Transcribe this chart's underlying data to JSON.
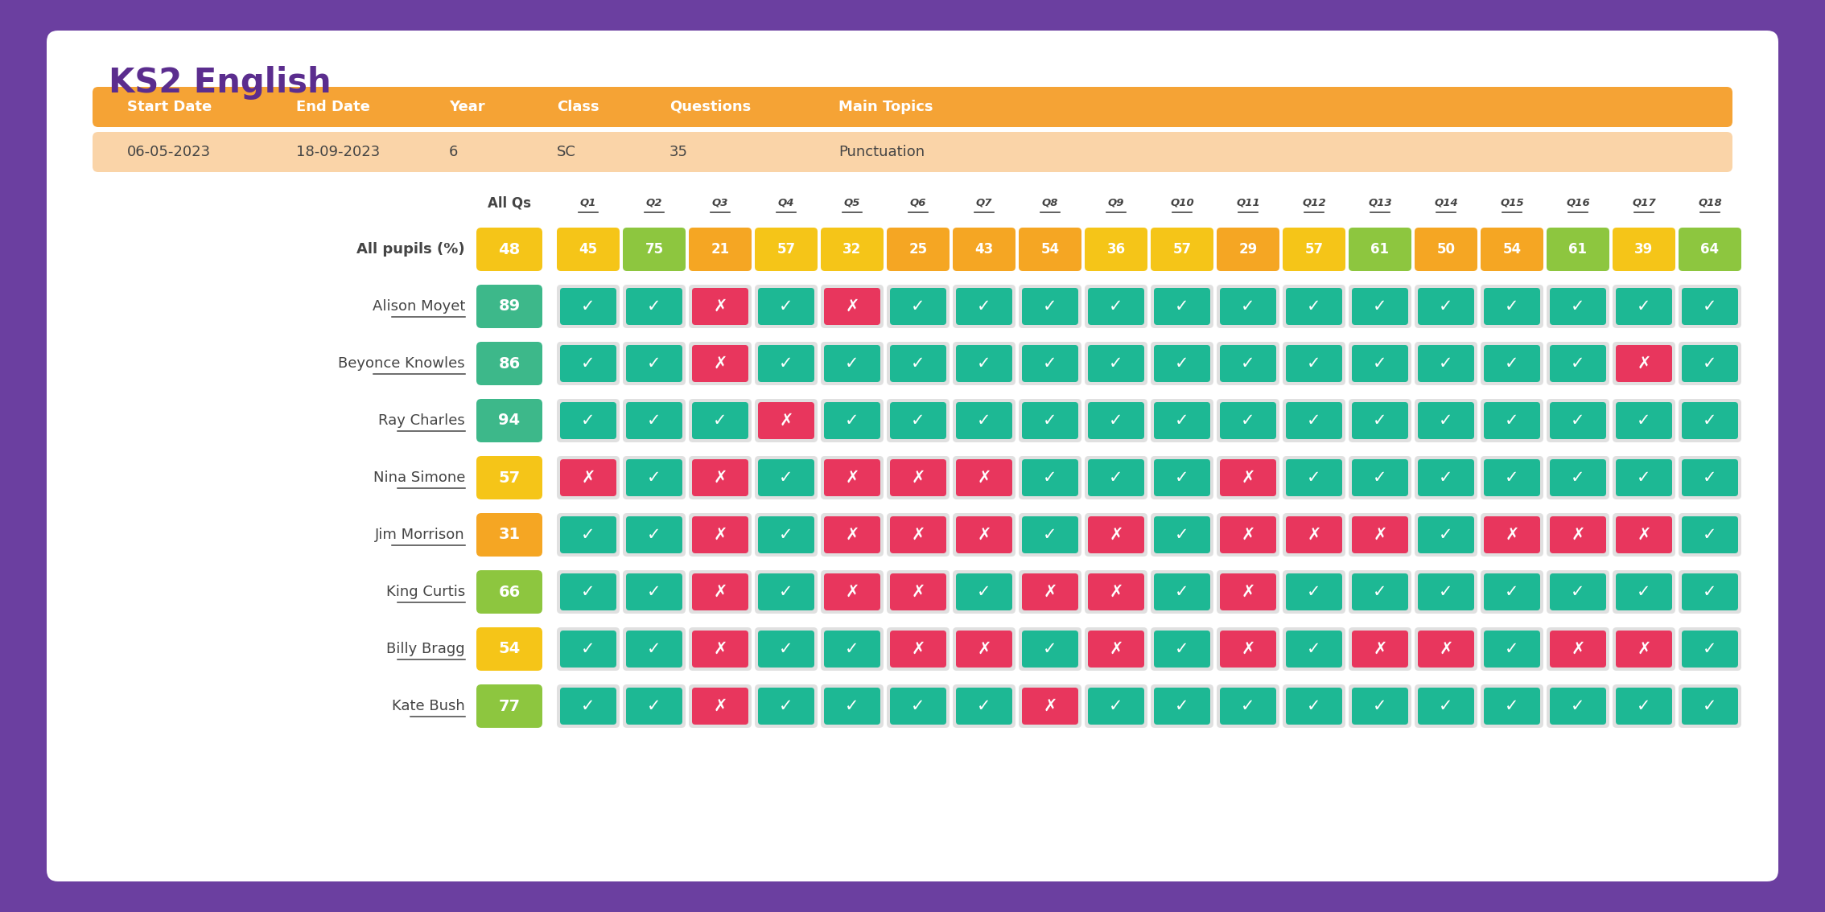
{
  "title": "KS2 English",
  "title_color": "#5b2d8e",
  "bg_outer": "#6b3fa0",
  "bg_card": "#ffffff",
  "orange_header_bg": "#f5a335",
  "orange_data_bg": "#fad4a8",
  "header_cols": [
    "Start Date",
    "End Date",
    "Year",
    "Class",
    "Questions",
    "Main Topics"
  ],
  "header_data": [
    "06-05-2023",
    "18-09-2023",
    "6",
    "SC",
    "35",
    "Punctuation"
  ],
  "q_labels": [
    "Q1",
    "Q2",
    "Q3",
    "Q4",
    "Q5",
    "Q6",
    "Q7",
    "Q8",
    "Q9",
    "Q10",
    "Q11",
    "Q12",
    "Q13",
    "Q14",
    "Q15",
    "Q16",
    "Q17",
    "Q18"
  ],
  "all_pupils_score": 48,
  "all_pupils_score_color": "#f5c518",
  "all_pupils_q_scores": [
    45,
    75,
    21,
    57,
    32,
    25,
    43,
    54,
    36,
    57,
    29,
    57,
    61,
    50,
    54,
    61,
    39,
    64
  ],
  "all_pupils_q_colors": [
    "#f5c518",
    "#8dc63f",
    "#f5a623",
    "#f5c518",
    "#f5c518",
    "#f5a623",
    "#f5a623",
    "#f5a623",
    "#f5c518",
    "#f5c518",
    "#f5a623",
    "#f5c518",
    "#8dc63f",
    "#f5a623",
    "#f5a623",
    "#8dc63f",
    "#f5c518",
    "#8dc63f"
  ],
  "students": [
    {
      "name": "Alison Moyet",
      "score": 89,
      "score_color": "#3db88a",
      "answers": [
        1,
        1,
        0,
        1,
        0,
        1,
        1,
        1,
        1,
        1,
        1,
        1,
        1,
        1,
        1,
        1,
        1,
        1
      ]
    },
    {
      "name": "Beyonce Knowles",
      "score": 86,
      "score_color": "#3db88a",
      "answers": [
        1,
        1,
        0,
        1,
        1,
        1,
        1,
        1,
        1,
        1,
        1,
        1,
        1,
        1,
        1,
        1,
        0,
        1
      ]
    },
    {
      "name": "Ray Charles",
      "score": 94,
      "score_color": "#3db88a",
      "answers": [
        1,
        1,
        1,
        0,
        1,
        1,
        1,
        1,
        1,
        1,
        1,
        1,
        1,
        1,
        1,
        1,
        1,
        1
      ]
    },
    {
      "name": "Nina Simone",
      "score": 57,
      "score_color": "#f5c518",
      "answers": [
        0,
        1,
        0,
        1,
        0,
        0,
        0,
        1,
        1,
        1,
        0,
        1,
        1,
        1,
        1,
        1,
        1,
        1
      ]
    },
    {
      "name": "Jim Morrison",
      "score": 31,
      "score_color": "#f5a623",
      "answers": [
        1,
        1,
        0,
        1,
        0,
        0,
        0,
        1,
        0,
        1,
        0,
        0,
        0,
        1,
        0,
        0,
        0,
        1
      ]
    },
    {
      "name": "King Curtis",
      "score": 66,
      "score_color": "#8dc63f",
      "answers": [
        1,
        1,
        0,
        1,
        0,
        0,
        1,
        0,
        0,
        1,
        0,
        1,
        1,
        1,
        1,
        1,
        1,
        1
      ]
    },
    {
      "name": "Billy Bragg",
      "score": 54,
      "score_color": "#f5c518",
      "answers": [
        1,
        1,
        0,
        1,
        1,
        0,
        0,
        1,
        0,
        1,
        0,
        1,
        0,
        0,
        1,
        0,
        0,
        1
      ]
    },
    {
      "name": "Kate Bush",
      "score": 77,
      "score_color": "#8dc63f",
      "answers": [
        1,
        1,
        0,
        1,
        1,
        1,
        1,
        0,
        1,
        1,
        1,
        1,
        1,
        1,
        1,
        1,
        1,
        1
      ]
    }
  ],
  "tick_color": "#1db894",
  "cross_color": "#e8365d",
  "cell_light_bg": "#e0e0e0",
  "text_dark": "#444444"
}
